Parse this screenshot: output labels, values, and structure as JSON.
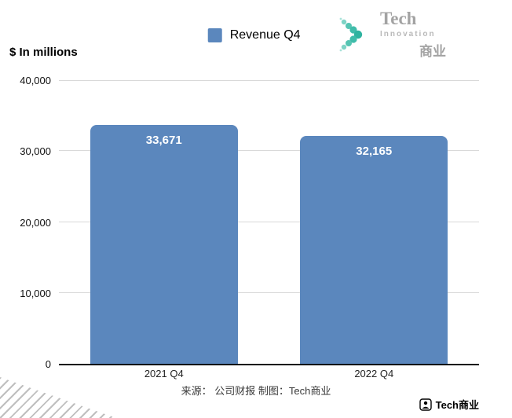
{
  "note": {
    "text": "$ In millions"
  },
  "legend": {
    "label": "Revenue Q4",
    "color": "#5b87bd"
  },
  "logo": {
    "tech": "Tech",
    "innovation": "Innovation",
    "cn": "商业"
  },
  "footer": {
    "caption": "来源： 公司财报 制图：Tech商业"
  },
  "account": {
    "label": "Tech商业"
  },
  "chart_data": {
    "type": "bar",
    "categories": [
      "2021 Q4",
      "2022 Q4"
    ],
    "values": [
      33671,
      32165
    ],
    "value_labels": [
      "33,671",
      "32,165"
    ],
    "title": "Revenue Q4",
    "xlabel": "",
    "ylabel": "$ In millions",
    "ylim": [
      0,
      40000
    ],
    "yticks": [
      0,
      10000,
      20000,
      30000,
      40000
    ],
    "ytick_labels": [
      "0",
      "10,000",
      "20,000",
      "30,000",
      "40,000"
    ],
    "bar_color": "#5b87bd",
    "grid": true,
    "legend_position": "top-center"
  }
}
